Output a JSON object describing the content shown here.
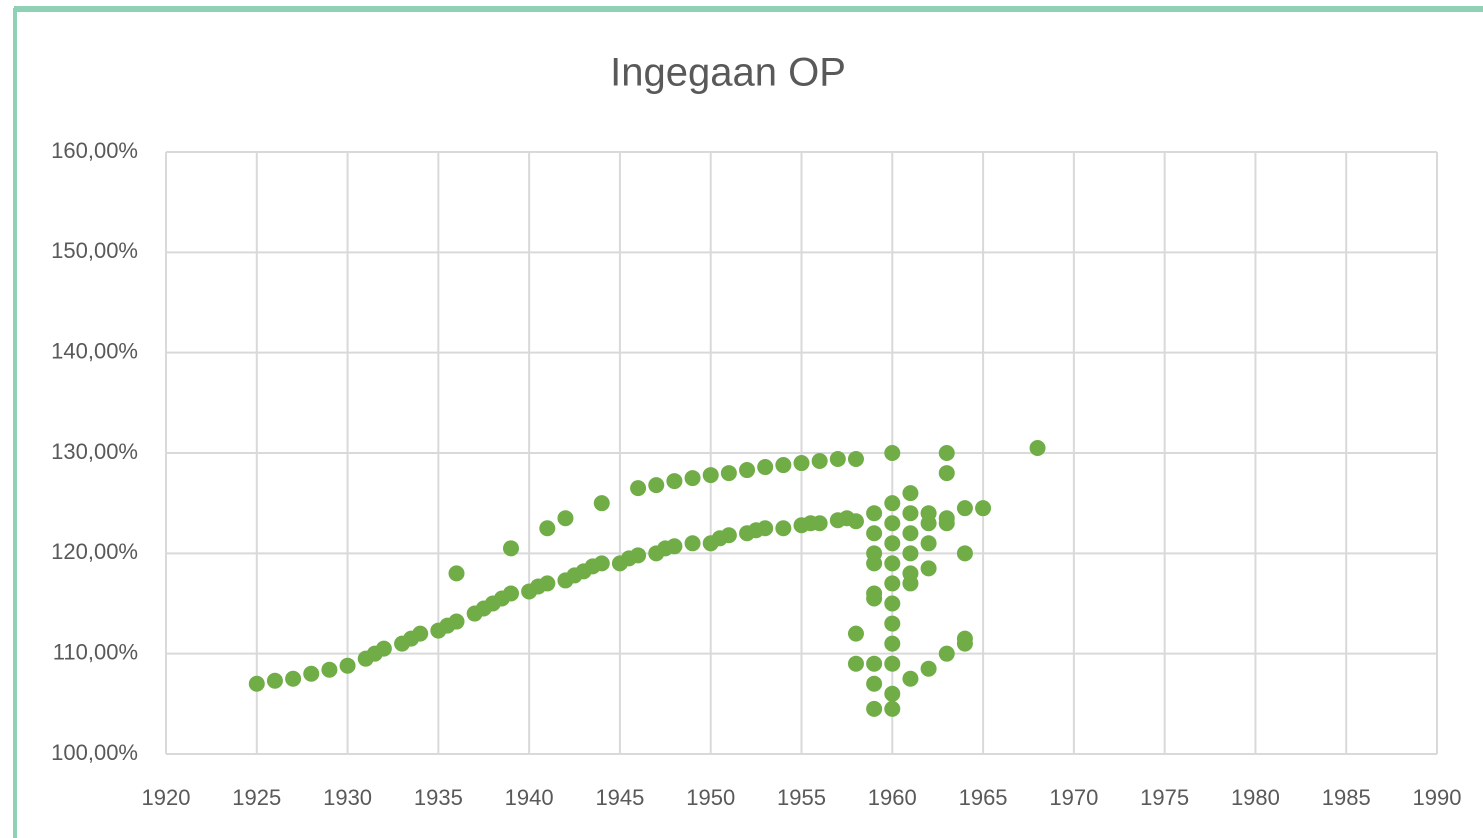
{
  "chart_data": {
    "type": "scatter",
    "title": "Ingegaan OP",
    "color": "#70ad47",
    "grid": true,
    "xlim": [
      1920,
      1990
    ],
    "xticks": [
      1920,
      1925,
      1930,
      1935,
      1940,
      1945,
      1950,
      1955,
      1960,
      1965,
      1970,
      1975,
      1980,
      1985,
      1990
    ],
    "ylim": [
      100,
      160
    ],
    "yticks": [
      {
        "value": 100,
        "label": "100,00%"
      },
      {
        "value": 110,
        "label": "110,00%"
      },
      {
        "value": 120,
        "label": "120,00%"
      },
      {
        "value": 130,
        "label": "130,00%"
      },
      {
        "value": 140,
        "label": "140,00%"
      },
      {
        "value": 150,
        "label": "150,00%"
      },
      {
        "value": 160,
        "label": "160,00%"
      }
    ],
    "x": [
      1925,
      1926,
      1927,
      1928,
      1929,
      1930,
      1931,
      1931.5,
      1932,
      1933,
      1933.5,
      1934,
      1935,
      1935.5,
      1936,
      1937,
      1937.5,
      1938,
      1938.5,
      1939,
      1940,
      1940.5,
      1941,
      1942,
      1942.5,
      1943,
      1943.5,
      1944,
      1945,
      1945.5,
      1946,
      1947,
      1947.5,
      1948,
      1949,
      1950,
      1950.5,
      1951,
      1952,
      1952.5,
      1953,
      1954,
      1955,
      1955.5,
      1956,
      1957,
      1957.5,
      1958,
      1936,
      1939,
      1941,
      1942,
      1944,
      1946,
      1947,
      1948,
      1949,
      1950,
      1951,
      1952,
      1953,
      1954,
      1955,
      1956,
      1957,
      1958,
      1958,
      1958,
      1959,
      1959,
      1959,
      1959,
      1959,
      1959,
      1959,
      1959,
      1959,
      1960,
      1960,
      1960,
      1960,
      1960,
      1960,
      1960,
      1960,
      1960,
      1960,
      1960,
      1960,
      1961,
      1961,
      1961,
      1961,
      1961,
      1961,
      1961,
      1962,
      1962,
      1962,
      1962,
      1962,
      1963,
      1963,
      1963,
      1963,
      1963,
      1964,
      1964,
      1964,
      1964,
      1965,
      1968
    ],
    "values": [
      107,
      107.3,
      107.5,
      108,
      108.4,
      108.8,
      109.5,
      110,
      110.5,
      111,
      111.5,
      112,
      112.3,
      112.8,
      113.2,
      114,
      114.5,
      115,
      115.5,
      116,
      116.2,
      116.7,
      117,
      117.3,
      117.8,
      118.2,
      118.7,
      119,
      119,
      119.5,
      119.8,
      120,
      120.5,
      120.7,
      121,
      121,
      121.5,
      121.8,
      122,
      122.3,
      122.5,
      122.5,
      122.8,
      123,
      123,
      123.3,
      123.5,
      123.2,
      118,
      120.5,
      122.5,
      123.5,
      125,
      126.5,
      126.8,
      127.2,
      127.5,
      127.8,
      128,
      128.3,
      128.6,
      128.8,
      129,
      129.2,
      129.4,
      129.4,
      112,
      109,
      124,
      122,
      120,
      119,
      116,
      115.5,
      109,
      107,
      104.5,
      130,
      125,
      123,
      121,
      119,
      117,
      115,
      113,
      111,
      109,
      106,
      104.5,
      126,
      124,
      122,
      120,
      118,
      117,
      107.5,
      124,
      123,
      121,
      118.5,
      108.5,
      130,
      128,
      123.5,
      123,
      110,
      124.5,
      120,
      111.5,
      111,
      124.5,
      130.5
    ]
  }
}
